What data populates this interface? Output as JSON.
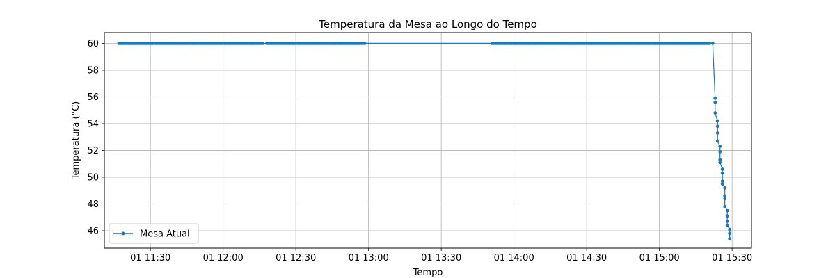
{
  "chart_data": {
    "type": "line",
    "title": "Temperatura da Mesa ao Longo do Tempo",
    "xlabel": "Tempo",
    "ylabel": "Temperatura (°C)",
    "xlim": [
      "01 11:11",
      "01 15:38"
    ],
    "ylim": [
      44.7,
      60.8
    ],
    "x_ticks": [
      {
        "time": "01 11:30",
        "label": "01 11:30"
      },
      {
        "time": "01 12:00",
        "label": "01 12:00"
      },
      {
        "time": "01 12:30",
        "label": "01 12:30"
      },
      {
        "time": "01 13:00",
        "label": "01 13:00"
      },
      {
        "time": "01 13:30",
        "label": "01 13:30"
      },
      {
        "time": "01 14:00",
        "label": "01 14:00"
      },
      {
        "time": "01 14:30",
        "label": "01 14:30"
      },
      {
        "time": "01 15:00",
        "label": "01 15:00"
      },
      {
        "time": "01 15:30",
        "label": "01 15:30"
      }
    ],
    "y_ticks": [
      46,
      48,
      50,
      52,
      54,
      56,
      58,
      60
    ],
    "grid": true,
    "legend_position": "lower-left",
    "color": "#1f77b4",
    "series": [
      {
        "name": "Mesa Atual",
        "segments_at_60": [
          {
            "start": "01 11:17",
            "end": "01 12:17"
          },
          {
            "start": "01 12:18",
            "end": "01 12:59"
          },
          {
            "start": "01 13:51",
            "end": "01 15:21"
          }
        ],
        "drop_points": [
          {
            "x": "01 15:22",
            "y": 60.0
          },
          {
            "x": "01 15:23",
            "y": 55.9
          },
          {
            "x": "01 15:23",
            "y": 55.6
          },
          {
            "x": "01 15:23",
            "y": 54.8
          },
          {
            "x": "01 15:24",
            "y": 54.2
          },
          {
            "x": "01 15:24",
            "y": 53.8
          },
          {
            "x": "01 15:24",
            "y": 53.3
          },
          {
            "x": "01 15:24",
            "y": 52.7
          },
          {
            "x": "01 15:25",
            "y": 52.3
          },
          {
            "x": "01 15:25",
            "y": 51.9
          },
          {
            "x": "01 15:25",
            "y": 51.3
          },
          {
            "x": "01 15:25",
            "y": 51.1
          },
          {
            "x": "01 15:26",
            "y": 50.6
          },
          {
            "x": "01 15:26",
            "y": 50.3
          },
          {
            "x": "01 15:26",
            "y": 49.7
          },
          {
            "x": "01 15:26",
            "y": 49.5
          },
          {
            "x": "01 15:27",
            "y": 49.2
          },
          {
            "x": "01 15:27",
            "y": 48.6
          },
          {
            "x": "01 15:27",
            "y": 48.4
          },
          {
            "x": "01 15:27",
            "y": 47.8
          },
          {
            "x": "01 15:28",
            "y": 47.5
          },
          {
            "x": "01 15:28",
            "y": 47.1
          },
          {
            "x": "01 15:28",
            "y": 46.7
          },
          {
            "x": "01 15:28",
            "y": 46.4
          },
          {
            "x": "01 15:29",
            "y": 46.1
          },
          {
            "x": "01 15:29",
            "y": 45.8
          },
          {
            "x": "01 15:29",
            "y": 45.4
          }
        ]
      }
    ]
  }
}
